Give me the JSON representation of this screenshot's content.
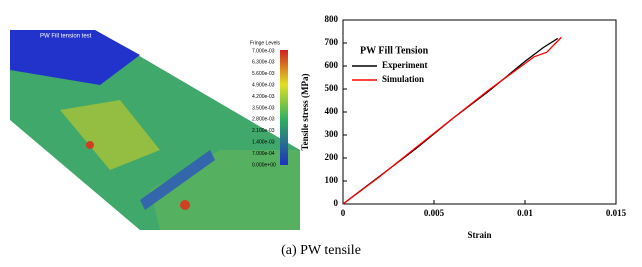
{
  "fem_image": {
    "title": "PW Fill tension test",
    "legend_title": "Fringe Levels",
    "fringe_levels": [
      "7.000e-03",
      "6.300e-03",
      "5.600e-03",
      "4.900e-03",
      "4.200e-03",
      "3.500e-03",
      "2.800e-03",
      "2.100e-03",
      "1.400e-03",
      "7.000e-04",
      "0.000e+00"
    ]
  },
  "chart_data": {
    "type": "line",
    "title": "PW Fill Tension",
    "x_label": "Strain",
    "y_label": "Tensile stress (MPa)",
    "xlim": [
      0,
      0.015
    ],
    "xticks": [
      0,
      0.005,
      0.01,
      0.015
    ],
    "ylim": [
      0,
      800
    ],
    "yticks": [
      0,
      100,
      200,
      300,
      400,
      500,
      600,
      700,
      800
    ],
    "series": [
      {
        "name": "Experiment",
        "color": "#000000",
        "x": [
          0,
          0.001,
          0.002,
          0.004,
          0.006,
          0.008,
          0.01,
          0.011,
          0.0118
        ],
        "values": [
          0,
          60,
          120,
          240,
          370,
          490,
          620,
          680,
          720
        ]
      },
      {
        "name": "Simulation",
        "color": "#ff0000",
        "x": [
          0,
          0.002,
          0.004,
          0.006,
          0.008,
          0.0105,
          0.0112,
          0.012
        ],
        "values": [
          0,
          118,
          245,
          370,
          495,
          640,
          660,
          725
        ]
      }
    ]
  },
  "caption": "(a) PW tensile"
}
